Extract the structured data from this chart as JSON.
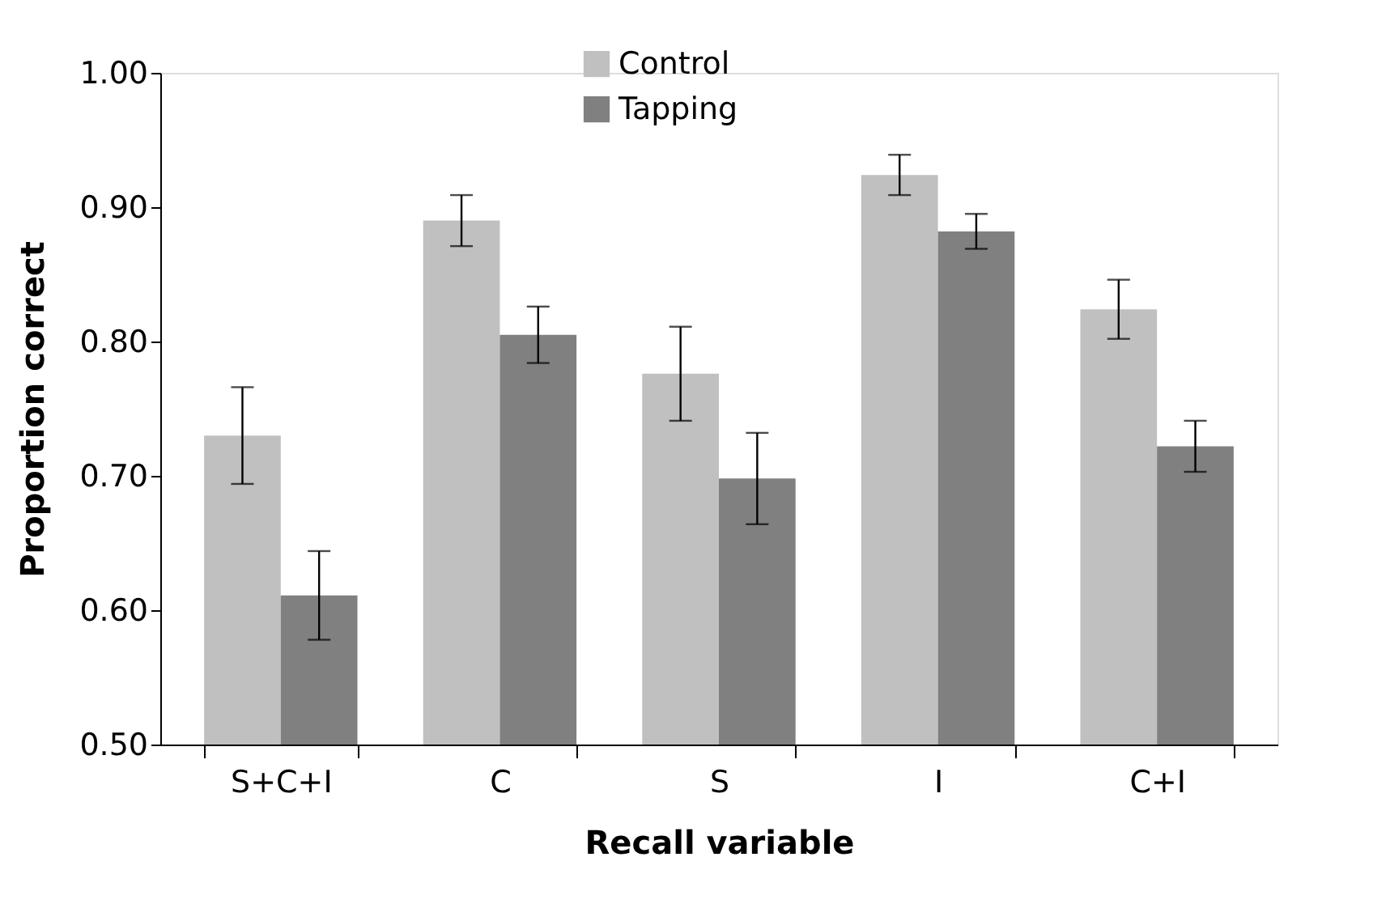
{
  "chart_data": {
    "type": "bar",
    "xlabel": "Recall variable",
    "ylabel": "Proportion correct",
    "categories": [
      "S+C+I",
      "C",
      "S",
      "I",
      "C+I"
    ],
    "series": [
      {
        "name": "Control",
        "color": "#c0c0c0",
        "values": [
          0.73,
          0.89,
          0.776,
          0.924,
          0.824
        ],
        "errors": [
          0.036,
          0.019,
          0.035,
          0.015,
          0.022
        ]
      },
      {
        "name": "Tapping",
        "color": "#808080",
        "values": [
          0.611,
          0.805,
          0.698,
          0.882,
          0.722
        ],
        "errors": [
          0.033,
          0.021,
          0.034,
          0.013,
          0.019
        ]
      }
    ],
    "ylim": [
      0.5,
      1.0
    ],
    "yticks": [
      {
        "value": 0.5,
        "label": "0.50"
      },
      {
        "value": 0.6,
        "label": "0.60"
      },
      {
        "value": 0.7,
        "label": "0.70"
      },
      {
        "value": 0.8,
        "label": "0.80"
      },
      {
        "value": 0.9,
        "label": "0.90"
      },
      {
        "value": 1.0,
        "label": "1.00"
      }
    ],
    "grid": false,
    "legend": "top"
  }
}
